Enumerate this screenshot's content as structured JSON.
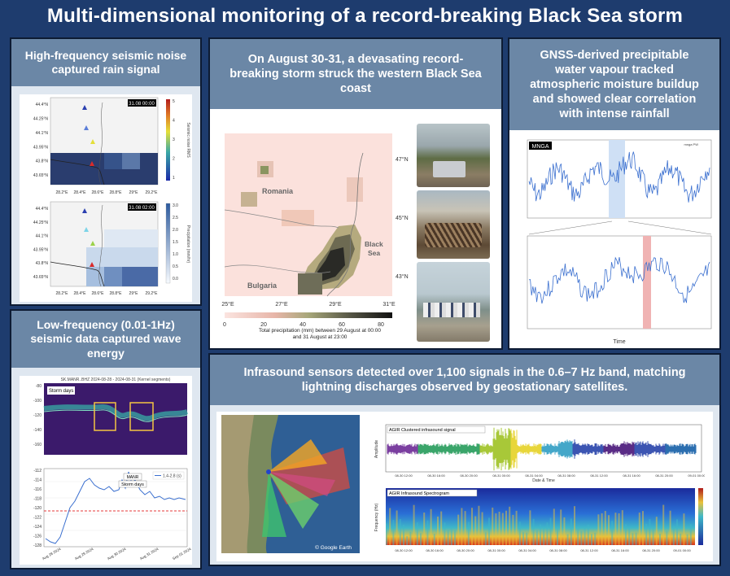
{
  "title": "Multi-dimensional monitoring of a record-breaking Black Sea storm",
  "panels": {
    "seismic_hf": {
      "heading": "High-frequency seismic noise captured rain signal",
      "map1": {
        "timestamp": "31.08 00:00",
        "colorbar_label": "Seismic noise RMS",
        "colorbar_ticks": [
          "1",
          "2",
          "3",
          "4",
          "5"
        ],
        "lat_ticks": [
          "44.4°N",
          "44.25°N",
          "44.1°N",
          "43.95°N",
          "43.8°N",
          "43.65°N"
        ],
        "lon_ticks": [
          "28.2°E",
          "28.4°E",
          "28.6°E",
          "28.8°E",
          "29°E",
          "29.2°E"
        ]
      },
      "map2": {
        "timestamp": "31.08 02:00",
        "colorbar_label": "Precipitation (mm/hr)",
        "colorbar_ticks": [
          "0.0",
          "0.5",
          "1.0",
          "1.5",
          "2.0",
          "2.5",
          "3.0"
        ],
        "lat_ticks": [
          "44.4°N",
          "44.25°N",
          "44.1°N",
          "43.95°N",
          "43.8°N",
          "43.65°N"
        ],
        "lon_ticks": [
          "28.2°E",
          "28.4°E",
          "28.6°E",
          "28.8°E",
          "29°E",
          "29.2°E"
        ]
      }
    },
    "seismic_lf": {
      "heading": "Low-frequency (0.01-1Hz) seismic data captured wave energy",
      "plot1": {
        "title": "SK.MANR..BHZ  2024-08-28 - 2024-08-31  (Kernel segments)",
        "label": "Storm days"
      },
      "plot2": {
        "station": "MANR",
        "label": "Storm days",
        "legend": "1.4-2.8 (s)",
        "y_ticks": [
          "-112",
          "-114",
          "-116",
          "-118",
          "-120",
          "-122",
          "-124",
          "-126",
          "-128"
        ],
        "x_ticks": [
          "Aug 28 2024",
          "Aug 29 2024",
          "Aug 30 2024",
          "Aug 31 2024",
          "Sep 01 2024"
        ]
      }
    },
    "storm": {
      "heading": "On August 30-31, a devasating record-breaking storm struck the western Black Sea coast",
      "map": {
        "labels": {
          "romania": "Romania",
          "bulgaria": "Bulgaria",
          "black_sea": "Black Sea"
        },
        "lat_ticks": [
          "47°N",
          "45°N",
          "43°N"
        ],
        "lon_ticks": [
          "25°E",
          "27°E",
          "29°E",
          "31°E"
        ],
        "colorbar_ticks": [
          "0",
          "20",
          "40",
          "60",
          "80"
        ],
        "colorbar_caption": "Total precipitation (mm) between 29 August at 00:00 and 31 August at 23:00"
      }
    },
    "gnss": {
      "heading": "GNSS-derived precipitable water vapour tracked atmospheric moisture buildup and showed clear correlation with intense rainfall",
      "station": "MNGA",
      "legend": "mnga PW",
      "xlabel": "Time"
    },
    "infrasound": {
      "heading": "Infrasound sensors detected over 1,100 signals in the 0.6–7 Hz band, matching lightning discharges observed by geostationary satellites.",
      "map_credit": "© Google Earth",
      "waveform_title": "AGIR Clustered infrasound signal",
      "waveform_ylabel": "Amplitude",
      "waveform_xlabel": "Date & Time",
      "spectrogram_title": "AGIR Infrasound Spectrogram",
      "spectrogram_ylabel": "Frequency (Hz)",
      "time_ticks": [
        "08-30 12:00",
        "08-30 16:00",
        "08-30 20:00",
        "08-31 00:00",
        "08-31 04:00",
        "08-31 08:00",
        "08-31 12:00",
        "08-31 16:00",
        "08-31 20:00",
        "09-01 00:00"
      ]
    }
  },
  "colors": {
    "background": "#1e3c6e",
    "header": "#6b87a6",
    "border": "#0d1b33"
  }
}
